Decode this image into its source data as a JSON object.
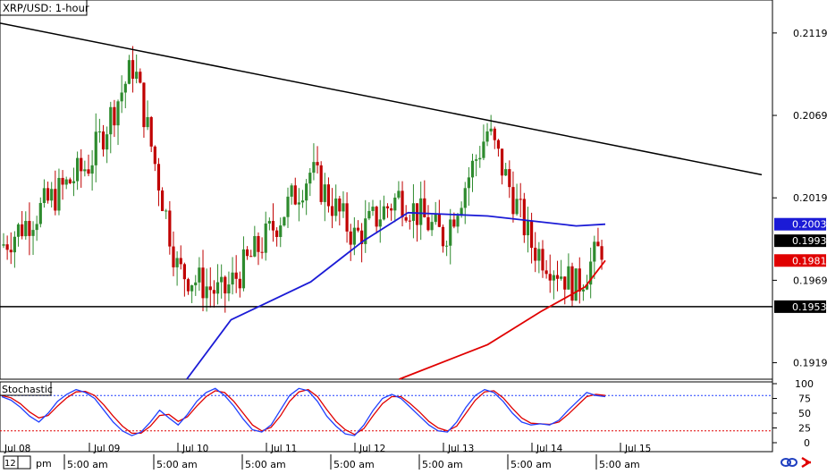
{
  "header": {
    "symbol_label": "XRP/USD: 1-hour"
  },
  "indicator": {
    "label": "Stochastic"
  },
  "toolbar": {
    "left_label_a": "12",
    "left_label_b": "pm",
    "link_icon": "link-icon",
    "arrow_icon": "red-arrow-icon"
  },
  "colors": {
    "up_candle": "#2e8b2e",
    "down_candle": "#c00000",
    "sma_fast": "#1b1bd6",
    "sma_slow": "#e00000",
    "trendline": "#000000",
    "stoch_k": "#2040ff",
    "stoch_d": "#e00000",
    "stoch_upper": "#2040ff",
    "stoch_lower": "#e00000"
  },
  "chart_data": [
    {
      "type": "candlestick",
      "title": "XRP/USD: 1-hour",
      "ylim": [
        0.1909,
        0.2139
      ],
      "y_ticks": [
        "0.2119",
        "0.2069",
        "0.2019",
        "0.1969",
        "0.1919"
      ],
      "y_tick_values": [
        0.2119,
        0.2069,
        0.2019,
        0.1969,
        0.1919
      ],
      "x_date_labels": [
        "Jul 08",
        "Jul 09",
        "Jul 10",
        "Jul 11",
        "Jul 12",
        "Jul 13",
        "Jul 14",
        "Jul 15"
      ],
      "x_time_labels": [
        "5:00 am",
        "5:00 am",
        "5:00 am",
        "5:00 am",
        "5:00 am",
        "5:00 am",
        "5:00 am"
      ],
      "price_labels": [
        {
          "text": "0.2003",
          "value": 0.2003,
          "style": "blue"
        },
        {
          "text": "0.1993",
          "value": 0.1993,
          "style": "black"
        },
        {
          "text": "0.1981",
          "value": 0.1981,
          "style": "red"
        },
        {
          "text": "0.1953",
          "value": 0.1953,
          "style": "black"
        }
      ],
      "support_level": 0.1953,
      "trendline": {
        "x": [
          "Jul 08",
          "Jul 15"
        ],
        "y": [
          0.2125,
          0.2033
        ]
      },
      "series": [
        {
          "name": "",
          "kind": "ohlc_close",
          "key_points": {
            "x": [
              "Jul 08",
              "Jul 09",
              "Jul 09",
              "Jul 10",
              "Jul 10",
              "Jul 11",
              "Jul 11",
              "Jul 12",
              "Jul 12",
              "Jul 13",
              "Jul 13",
              "Jul 14",
              "Jul 14",
              "Jul 15"
            ],
            "y": [
              0.199,
              0.204,
              0.21,
              0.1975,
              0.196,
              0.1995,
              0.2035,
              0.1995,
              0.202,
              0.1995,
              0.206,
              0.199,
              0.1965,
              0.1993
            ]
          }
        },
        {
          "name": "",
          "kind": "moving_average_fast",
          "key_points": {
            "x": [
              "Jul 10",
              "Jul 10",
              "Jul 11",
              "Jul 12",
              "Jul 12",
              "Jul 13",
              "Jul 14",
              "Jul 15"
            ],
            "y": [
              0.1909,
              0.1945,
              0.1968,
              0.1993,
              0.201,
              0.2008,
              0.2002,
              0.2003
            ]
          }
        },
        {
          "name": "",
          "kind": "moving_average_slow",
          "key_points": {
            "x": [
              "Jul 12",
              "Jul 13",
              "Jul 14",
              "Jul 14",
              "Jul 15"
            ],
            "y": [
              0.1909,
              0.193,
              0.195,
              0.1965,
              0.1981
            ]
          }
        }
      ]
    },
    {
      "type": "line",
      "title": "Stochastic",
      "ylim": [
        0,
        100
      ],
      "y_ticks": [
        "100",
        "75",
        "50",
        "25",
        "0"
      ],
      "y_tick_values": [
        100,
        75,
        50,
        25,
        0
      ],
      "levels": [
        80,
        20
      ],
      "series": [
        {
          "name": "",
          "kind": "k",
          "values": [
            78,
            72,
            60,
            45,
            35,
            50,
            70,
            82,
            90,
            85,
            75,
            55,
            35,
            20,
            12,
            18,
            35,
            55,
            42,
            30,
            48,
            70,
            85,
            92,
            80,
            62,
            40,
            22,
            18,
            30,
            55,
            80,
            92,
            88,
            70,
            45,
            28,
            15,
            12,
            30,
            55,
            75,
            82,
            75,
            60,
            45,
            30,
            20,
            18,
            35,
            60,
            80,
            90,
            85,
            70,
            50,
            35,
            30,
            32,
            30,
            38,
            55,
            70,
            85,
            80,
            78
          ]
        },
        {
          "name": "",
          "kind": "d",
          "values": [
            80,
            76,
            66,
            52,
            42,
            46,
            62,
            76,
            86,
            87,
            80,
            64,
            45,
            28,
            16,
            16,
            28,
            46,
            48,
            36,
            44,
            62,
            78,
            88,
            85,
            70,
            50,
            30,
            20,
            26,
            45,
            70,
            86,
            90,
            78,
            56,
            36,
            22,
            14,
            24,
            46,
            66,
            78,
            78,
            66,
            52,
            36,
            25,
            20,
            28,
            50,
            72,
            86,
            88,
            76,
            58,
            42,
            33,
            32,
            31,
            35,
            48,
            63,
            78,
            82,
            80
          ]
        }
      ]
    }
  ]
}
